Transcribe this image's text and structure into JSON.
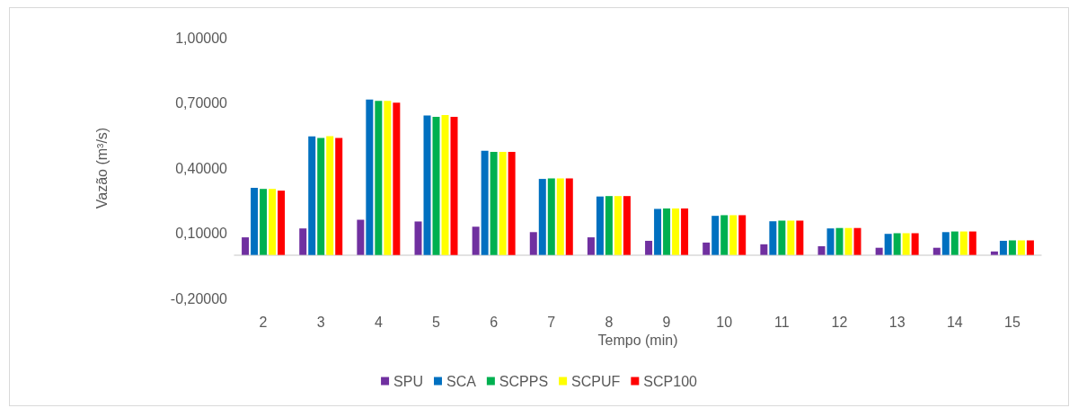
{
  "chart_data": {
    "type": "bar",
    "xlabel": "Tempo (min)",
    "ylabel": "Vazão (m³/s)",
    "categories": [
      "2",
      "3",
      "4",
      "5",
      "6",
      "7",
      "8",
      "9",
      "10",
      "11",
      "12",
      "13",
      "14",
      "15"
    ],
    "ylim": [
      -0.2,
      1.0
    ],
    "yticks": [
      {
        "value": -0.2,
        "label": "-0,20000"
      },
      {
        "value": 0.1,
        "label": "0,10000"
      },
      {
        "value": 0.4,
        "label": "0,40000"
      },
      {
        "value": 0.7,
        "label": "0,70000"
      },
      {
        "value": 1.0,
        "label": "1,00000"
      }
    ],
    "grid": false,
    "legend": "bottom",
    "series": [
      {
        "name": "SPU",
        "color": "#7030a0",
        "values": [
          0.081,
          0.122,
          0.162,
          0.154,
          0.13,
          0.105,
          0.081,
          0.065,
          0.057,
          0.049,
          0.04,
          0.033,
          0.033,
          0.016
        ]
      },
      {
        "name": "SCA",
        "color": "#0070c0",
        "values": [
          0.309,
          0.546,
          0.715,
          0.642,
          0.48,
          0.35,
          0.269,
          0.212,
          0.18,
          0.155,
          0.122,
          0.097,
          0.105,
          0.065
        ]
      },
      {
        "name": "SCPPS",
        "color": "#00b050",
        "values": [
          0.304,
          0.539,
          0.709,
          0.636,
          0.474,
          0.352,
          0.271,
          0.214,
          0.183,
          0.158,
          0.124,
          0.1,
          0.108,
          0.067
        ]
      },
      {
        "name": "SCPUF",
        "color": "#ffff00",
        "values": [
          0.304,
          0.547,
          0.709,
          0.644,
          0.474,
          0.352,
          0.271,
          0.214,
          0.183,
          0.158,
          0.124,
          0.1,
          0.108,
          0.067
        ]
      },
      {
        "name": "SCP100",
        "color": "#ff0000",
        "values": [
          0.296,
          0.539,
          0.701,
          0.636,
          0.474,
          0.352,
          0.271,
          0.214,
          0.183,
          0.158,
          0.124,
          0.1,
          0.108,
          0.067
        ]
      }
    ]
  }
}
